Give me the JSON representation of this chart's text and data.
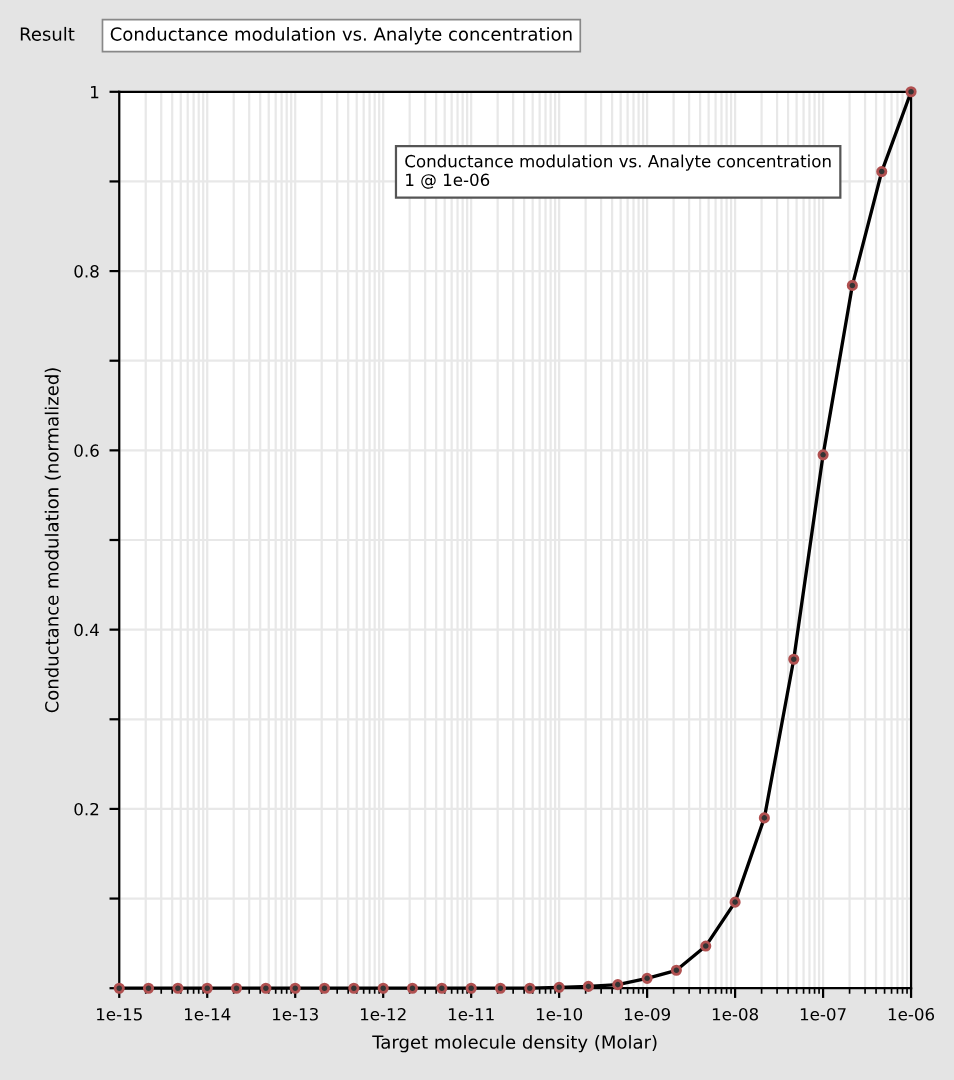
{
  "chart_data": {
    "type": "line",
    "title": "Conductance modulation vs. Analyte concentration",
    "annotations": [
      "Result",
      "Conductance modulation vs. Analyte concentration\n1 @ 1e-06"
    ],
    "xlabel": "Target molecule density (Molar)",
    "ylabel": "Conductance modulation (normalized)",
    "log": "x",
    "x": [
      1e-15,
      2.15e-15,
      4.64e-15,
      1e-14,
      2.15e-14,
      4.64e-14,
      1e-13,
      2.15e-13,
      4.64e-13,
      1e-12,
      2.15e-12,
      4.64e-12,
      1e-11,
      2.15e-11,
      4.64e-11,
      1e-10,
      2.15e-10,
      4.64e-10,
      1e-09,
      2.15e-09,
      4.64e-09,
      1e-08,
      2.15e-08,
      4.64e-08,
      1e-07,
      2.15e-07,
      4.64e-07,
      1e-06
    ],
    "series": [
      {
        "color": "#000000",
        "values": [
          0,
          0,
          0,
          0,
          0,
          0,
          0,
          0,
          0,
          0,
          0,
          0,
          0,
          0,
          0,
          0.001,
          0.002,
          0.004,
          0.011,
          0.02,
          0.047,
          0.096,
          0.19,
          0.367,
          0.595,
          0.784,
          0.911,
          1.0
        ]
      }
    ],
    "marker": "circle",
    "line_style": "solid",
    "xlim": [
      1e-15,
      1e-06
    ],
    "xticks": [
      {
        "value": 1e-15,
        "label": "1e-15"
      },
      {
        "value": 1e-14,
        "label": "1e-14"
      },
      {
        "value": 1e-13,
        "label": "1e-13"
      },
      {
        "value": 1e-12,
        "label": "1e-12"
      },
      {
        "value": 1e-11,
        "label": "1e-11"
      },
      {
        "value": 1e-10,
        "label": "1e-10"
      },
      {
        "value": 1e-09,
        "label": "1e-09"
      },
      {
        "value": 1e-08,
        "label": "1e-08"
      },
      {
        "value": 1e-07,
        "label": "1e-07"
      },
      {
        "value": 1e-06,
        "label": "1e-06"
      }
    ],
    "ylim": [
      0,
      1
    ],
    "yticks": [
      {
        "value": 0,
        "label": null
      },
      {
        "value": 0.1,
        "label": null
      },
      0.2,
      {
        "value": 0.3,
        "label": null
      },
      0.4,
      {
        "value": 0.5,
        "label": null
      },
      0.6,
      {
        "value": 0.7,
        "label": null
      },
      0.8,
      {
        "value": 0.9,
        "label": null
      },
      1
    ],
    "grid": true
  }
}
